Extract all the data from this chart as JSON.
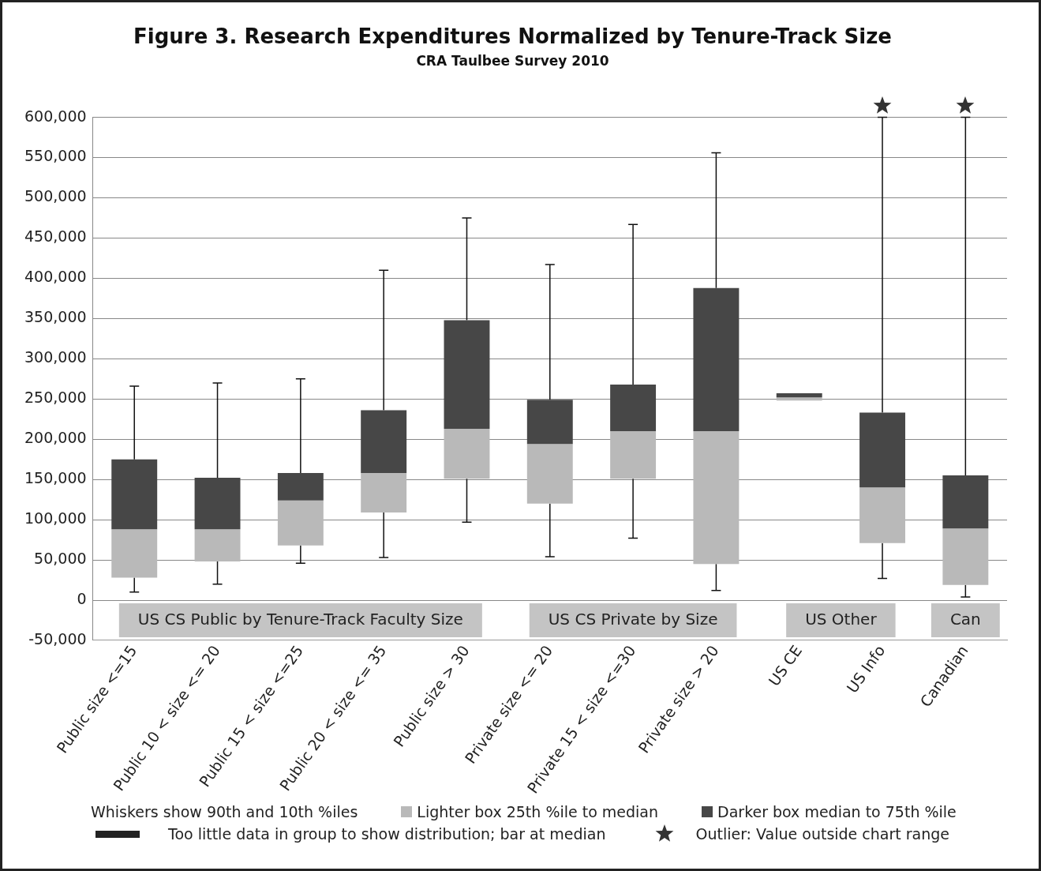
{
  "chart_data": {
    "type": "box",
    "title": "Figure 3. Research Expenditures Normalized by Tenure-Track Size",
    "subtitle": "CRA Taulbee Survey 2010",
    "categories": [
      "Public size <=15",
      "Public 10 < size <= 20",
      "Public 15 < size <=25",
      "Public 20 < size <= 35",
      "Public size > 30",
      "Private size <= 20",
      "Private 15 < size <=30",
      "Private size > 20",
      "US CE",
      "US Info",
      "Canadian"
    ],
    "boxes": [
      {
        "low": 10000,
        "q1": 28000,
        "median": 88000,
        "q3": 175000,
        "high": 266000
      },
      {
        "low": 20000,
        "q1": 48000,
        "median": 88000,
        "q3": 152000,
        "high": 270000
      },
      {
        "low": 46000,
        "q1": 68000,
        "median": 124000,
        "q3": 158000,
        "high": 275000
      },
      {
        "low": 53000,
        "q1": 109000,
        "median": 158000,
        "q3": 236000,
        "high": 410000
      },
      {
        "low": 97000,
        "q1": 151000,
        "median": 213000,
        "q3": 348000,
        "high": 475000
      },
      {
        "low": 54000,
        "q1": 120000,
        "median": 194000,
        "q3": 249000,
        "high": 417000
      },
      {
        "low": 77000,
        "q1": 151000,
        "median": 210000,
        "q3": 268000,
        "high": 467000
      },
      {
        "low": 12000,
        "q1": 45000,
        "median": 210000,
        "q3": 388000,
        "high": 556000
      },
      {
        "q1": 248000,
        "median": 252000,
        "q3": 257000
      },
      {
        "low": 27000,
        "q1": 71000,
        "median": 140000,
        "q3": 233000,
        "high": 600000
      },
      {
        "low": 4000,
        "q1": 19000,
        "median": 89000,
        "q3": 155000,
        "high": 600000
      }
    ],
    "color": "#b9b9b9",
    "ylim": [
      -50000,
      600000
    ],
    "yticks": [
      {
        "value": -50000,
        "label": "-50,000"
      },
      0,
      {
        "value": 50000,
        "label": "50,000"
      },
      {
        "value": 100000,
        "label": "100,000"
      },
      {
        "value": 150000,
        "label": "150,000"
      },
      {
        "value": 200000,
        "label": "200,000"
      },
      {
        "value": 250000,
        "label": "250,000"
      },
      {
        "value": 300000,
        "label": "300,000"
      },
      {
        "value": 350000,
        "label": "350,000"
      },
      {
        "value": 400000,
        "label": "400,000"
      },
      {
        "value": 450000,
        "label": "450,000"
      },
      {
        "value": 500000,
        "label": "500,000"
      },
      {
        "value": 550000,
        "label": "550,000"
      },
      {
        "value": 600000,
        "label": "600,000"
      }
    ],
    "grid": "y",
    "annotations": [
      "Whiskers show 90th and 10th %iles",
      "Lighter box  25th %ile to median",
      "Darker box  median to 75th %ile",
      "Too little data in group to show distribution; bar at median",
      "Outlier: Value outside chart range",
      "US CS Public by Tenure-Track Faculty Size",
      "US CS Private by Size",
      "US Other",
      "Can"
    ]
  }
}
